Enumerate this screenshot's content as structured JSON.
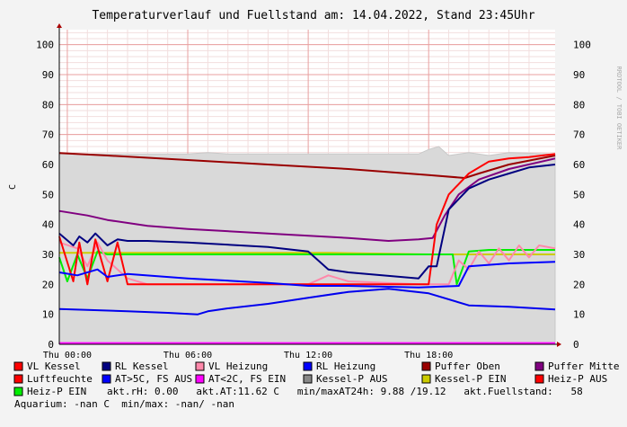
{
  "title": "Temperaturverlauf und Fuellstand am: 14.04.2022, Stand 23:45Uhr",
  "watermark": "RRDTOOL / TOBI OETIKER",
  "chart_data": {
    "type": "line",
    "ylabel": "C",
    "ylim": [
      0,
      105
    ],
    "yticks": [
      0,
      10,
      20,
      30,
      40,
      50,
      60,
      70,
      80,
      90,
      100
    ],
    "xlim": [
      -0.4,
      24.3
    ],
    "xticks": [
      {
        "x": 0,
        "label": "Thu 00:00"
      },
      {
        "x": 6,
        "label": "Thu 06:00"
      },
      {
        "x": 12,
        "label": "Thu 12:00"
      },
      {
        "x": 18,
        "label": "Thu 18:00"
      }
    ],
    "grid": true,
    "legend_position": "bottom",
    "series": [
      {
        "name": "Kessel-P AUS",
        "kind": "area",
        "color": "#888888",
        "x": [
          -0.4,
          1,
          4,
          6,
          7,
          8,
          12,
          16,
          17.5,
          18,
          18.5,
          19,
          20,
          21,
          22,
          24.3
        ],
        "values": [
          63.5,
          63.5,
          63.5,
          63.5,
          64,
          63.5,
          63.5,
          63.5,
          63.5,
          65,
          66,
          63,
          64,
          63,
          64,
          63.5
        ]
      },
      {
        "name": "Puffer Oben",
        "color": "#990000",
        "x": [
          -0.4,
          2,
          6,
          10,
          14,
          18,
          19.8,
          20.5,
          22,
          24.3
        ],
        "values": [
          63.8,
          63,
          61.5,
          60,
          58.5,
          56.5,
          55.5,
          57,
          60,
          63
        ]
      },
      {
        "name": "Puffer Mitte",
        "color": "#800080",
        "x": [
          -0.4,
          1,
          2,
          4,
          6,
          10,
          14,
          16,
          17.5,
          18.2,
          18.8,
          19.5,
          20.5,
          22,
          24.3
        ],
        "values": [
          44.5,
          43,
          41.5,
          39.5,
          38.5,
          37,
          35.5,
          34.5,
          35,
          35.5,
          43,
          50,
          55,
          58.5,
          62
        ]
      },
      {
        "name": "Kessel-P EIN",
        "color": "#cccc00",
        "x": [
          -0.4,
          2,
          4,
          8,
          12,
          13,
          18,
          18.4,
          19,
          24.3
        ],
        "values": [
          30.5,
          30.5,
          30.5,
          30.5,
          30.5,
          30.5,
          30,
          30,
          30,
          30
        ]
      },
      {
        "name": "Heiz-P EIN",
        "color": "#00ee00",
        "x": [
          -0.4,
          0,
          0.5,
          1,
          1.5,
          2,
          2.5,
          19.2,
          19.4,
          20,
          21,
          24.3
        ],
        "values": [
          29,
          21,
          30,
          22,
          31,
          30,
          30,
          30,
          20,
          31,
          31.5,
          31.5
        ]
      },
      {
        "name": "VL Heizung",
        "color": "#ff88aa",
        "x": [
          -0.4,
          0.5,
          1,
          1.5,
          2,
          3,
          4,
          6,
          12,
          13,
          14,
          17.5,
          19,
          19.5,
          20,
          20.5,
          21,
          21.5,
          22,
          22.5,
          23,
          23.5,
          24.3
        ],
        "values": [
          34,
          32,
          26,
          34,
          28,
          22,
          20,
          20,
          20,
          23,
          21,
          20,
          20,
          28,
          25,
          31,
          27,
          32,
          28,
          33,
          29,
          33,
          32
        ]
      },
      {
        "name": "VL Kessel",
        "color": "#ff0000",
        "x": [
          -0.4,
          0.3,
          0.6,
          1,
          1.4,
          2,
          2.5,
          3,
          4,
          6,
          10,
          12,
          13,
          14,
          18,
          18.4,
          19,
          20,
          21,
          22,
          23,
          24.3
        ],
        "values": [
          36,
          21,
          34,
          20,
          35,
          21,
          34,
          20,
          20,
          20,
          20,
          20,
          20,
          20,
          20,
          40,
          50,
          57,
          61,
          62,
          62.5,
          63.5
        ]
      },
      {
        "name": "RL Kessel",
        "color": "#000080",
        "x": [
          -0.4,
          0.3,
          0.6,
          1,
          1.4,
          2,
          2.5,
          3,
          4,
          6,
          10,
          12,
          13,
          14,
          17.5,
          18,
          18.4,
          19,
          20,
          21,
          22,
          23,
          24.3
        ],
        "values": [
          37,
          33,
          36,
          34,
          37,
          33,
          35,
          34.5,
          34.5,
          34,
          32.5,
          31,
          25,
          24,
          22,
          26,
          26,
          45,
          52,
          55,
          57,
          59,
          60
        ]
      },
      {
        "name": "RL Heizung",
        "color": "#0000ff",
        "x": [
          -0.4,
          0.5,
          1.5,
          2,
          3,
          6,
          10,
          12,
          14,
          17.5,
          19.5,
          20,
          22,
          24.3
        ],
        "values": [
          24,
          23,
          25,
          22.5,
          23.5,
          22,
          20.5,
          19.5,
          19.5,
          19,
          19.5,
          26,
          27,
          27.5
        ]
      },
      {
        "name": "akt.AT",
        "color": "#0000ee",
        "x": [
          -0.4,
          1,
          3,
          5,
          6.5,
          7,
          8,
          10,
          12,
          14,
          16,
          18,
          20,
          22,
          24.3
        ],
        "values": [
          11.8,
          11.5,
          11,
          10.5,
          10,
          11,
          12,
          13.5,
          15.5,
          17.5,
          18.5,
          17,
          13,
          12.5,
          11.6
        ]
      }
    ]
  },
  "legend": {
    "rows": [
      [
        {
          "label": "VL Kessel",
          "color": "#ff0000"
        },
        {
          "label": "RL Kessel",
          "color": "#000080"
        },
        {
          "label": "VL Heizung",
          "color": "#ff88aa"
        },
        {
          "label": "RL Heizung",
          "color": "#0000ff"
        },
        {
          "label": "Puffer Oben",
          "color": "#990000"
        },
        {
          "label": "Puffer Mitte",
          "color": "#800080"
        }
      ],
      [
        {
          "label": "Luftfeuchte",
          "color": "#ff0000"
        },
        {
          "label": "AT>5C, FS AUS",
          "color": "#0000ff"
        },
        {
          "label": "AT<2C, FS EIN",
          "color": "#ff00ff"
        },
        {
          "label": "Kessel-P AUS",
          "color": "#888888"
        },
        {
          "label": "Kessel-P EIN",
          "color": "#cccc00"
        },
        {
          "label": "Heiz-P AUS",
          "color": "#ff0000"
        }
      ]
    ],
    "row3_item": {
      "label": "Heiz-P EIN",
      "color": "#00ee00"
    },
    "row3_text": "akt.rH: 0.00   akt.AT:11.62 C   min/maxAT24h: 9.88 /19.12   akt.Fuellstand:   58",
    "row4_text": "Aquarium: -nan C  min/max: -nan/ -nan"
  }
}
